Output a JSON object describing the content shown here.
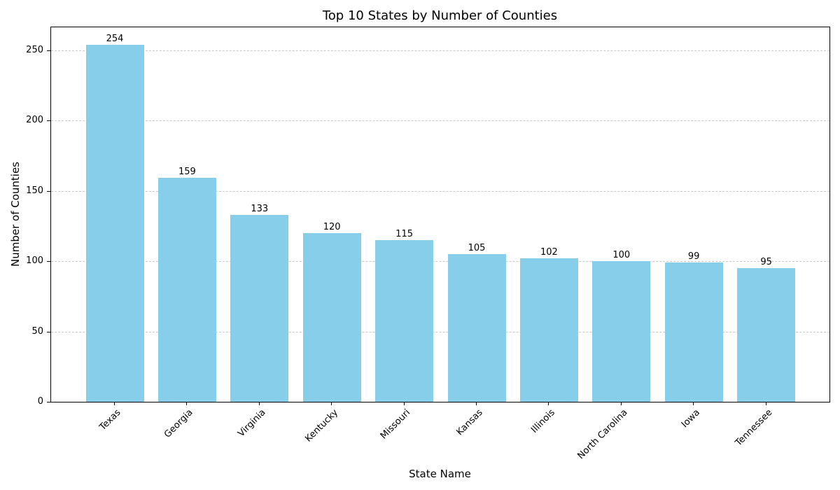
{
  "chart_data": {
    "type": "bar",
    "title": "Top 10 States by Number of Counties",
    "xlabel": "State Name",
    "ylabel": "Number of Counties",
    "categories": [
      "Texas",
      "Georgia",
      "Virginia",
      "Kentucky",
      "Missouri",
      "Kansas",
      "Illinois",
      "North Carolina",
      "Iowa",
      "Tennessee"
    ],
    "values": [
      254,
      159,
      133,
      120,
      115,
      105,
      102,
      100,
      99,
      95
    ],
    "ylim": [
      0,
      266.7
    ],
    "yticks": [
      0,
      50,
      100,
      150,
      200,
      250
    ],
    "grid": {
      "axis": "y",
      "style": "dashed",
      "color": "#c8c8c8"
    },
    "bar_color": "#87ceeb",
    "data_labels": true,
    "xtick_rotation": -45
  }
}
